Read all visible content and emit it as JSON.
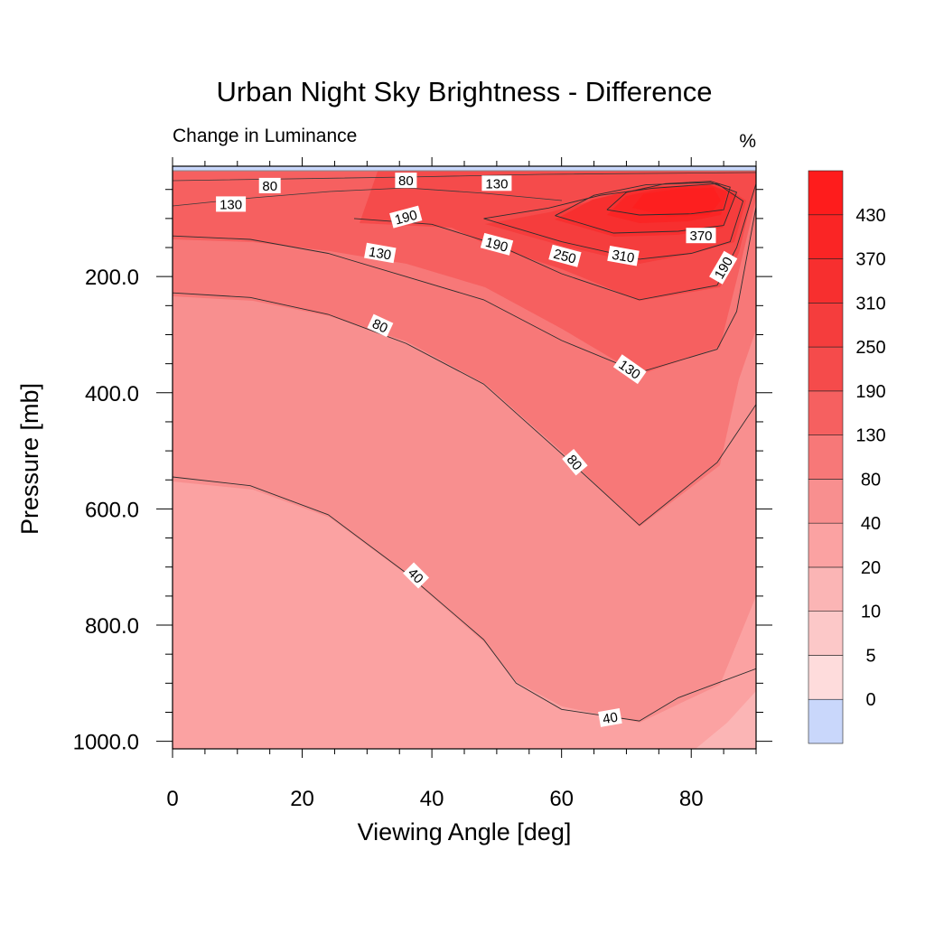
{
  "chart_data": {
    "type": "contour",
    "title": "Urban Night Sky Brightness - Difference",
    "subtitle_left": "Change in Luminance",
    "subtitle_right": "%",
    "xlabel": "Viewing Angle [deg]",
    "ylabel": "Pressure [mb]",
    "xlim": [
      0,
      90
    ],
    "ylim": [
      1013,
      10
    ],
    "x_ticks": [
      "0",
      "20",
      "40",
      "60",
      "80"
    ],
    "x_tick_values": [
      0,
      20,
      40,
      60,
      80
    ],
    "y_ticks": [
      "200.0",
      "400.0",
      "600.0",
      "800.0",
      "1000.0"
    ],
    "y_tick_values": [
      200,
      400,
      600,
      800,
      1000
    ],
    "colorbar": {
      "levels": [
        "0",
        "5",
        "10",
        "20",
        "40",
        "80",
        "130",
        "190",
        "250",
        "310",
        "370",
        "430"
      ],
      "colors": [
        "#c9d7fb",
        "#fedcdc",
        "#fcc8c8",
        "#fbb5b5",
        "#fba2a2",
        "#f88f8f",
        "#f77878",
        "#f66060",
        "#f54b4b",
        "#f53d3d",
        "#f72f2f",
        "#fa2525",
        "#fe1c1c"
      ]
    },
    "contour_lines": [
      {
        "level": "40",
        "points": [
          [
            0,
            545
          ],
          [
            12,
            560
          ],
          [
            24,
            610
          ],
          [
            36,
            710
          ],
          [
            48,
            825
          ],
          [
            53,
            900
          ],
          [
            60,
            945
          ],
          [
            72,
            965
          ],
          [
            78,
            925
          ],
          [
            84,
            900
          ],
          [
            90,
            875
          ]
        ]
      },
      {
        "level": "80",
        "points": [
          [
            0,
            228
          ],
          [
            12,
            236
          ],
          [
            24,
            265
          ],
          [
            36,
            315
          ],
          [
            48,
            385
          ],
          [
            60,
            505
          ],
          [
            72,
            628
          ],
          [
            84,
            520
          ],
          [
            87,
            470
          ],
          [
            90,
            420
          ]
        ]
      },
      {
        "level": "130",
        "points": [
          [
            0,
            130
          ],
          [
            12,
            136
          ],
          [
            24,
            160
          ],
          [
            36,
            200
          ],
          [
            48,
            240
          ],
          [
            60,
            310
          ],
          [
            72,
            365
          ],
          [
            84,
            325
          ],
          [
            87,
            260
          ],
          [
            90,
            80
          ]
        ]
      },
      {
        "level": "190",
        "points": [
          [
            28,
            100
          ],
          [
            40,
            110
          ],
          [
            50,
            145
          ],
          [
            60,
            195
          ],
          [
            72,
            240
          ],
          [
            84,
            215
          ],
          [
            87,
            150
          ],
          [
            90,
            40
          ]
        ]
      },
      {
        "level": "250",
        "points": [
          [
            48,
            100
          ],
          [
            58,
            82
          ],
          [
            66,
            60
          ],
          [
            74,
            48
          ],
          [
            84,
            40
          ],
          [
            88,
            70
          ],
          [
            86,
            140
          ],
          [
            80,
            160
          ],
          [
            72,
            170
          ],
          [
            60,
            140
          ],
          [
            48,
            100
          ]
        ]
      },
      {
        "level": "310",
        "points": [
          [
            59,
            95
          ],
          [
            65,
            60
          ],
          [
            73,
            42
          ],
          [
            83,
            38
          ],
          [
            87,
            55
          ],
          [
            85,
            112
          ],
          [
            78,
            122
          ],
          [
            68,
            125
          ],
          [
            59,
            95
          ]
        ]
      },
      {
        "level": "370",
        "points": [
          [
            67,
            85
          ],
          [
            70,
            55
          ],
          [
            76,
            40
          ],
          [
            83,
            36
          ],
          [
            86,
            46
          ],
          [
            85,
            85
          ],
          [
            80,
            92
          ],
          [
            72,
            94
          ],
          [
            67,
            85
          ]
        ]
      }
    ],
    "contour_labels": [
      {
        "text": "80",
        "x": 15,
        "y": 44,
        "angle": 0
      },
      {
        "text": "80",
        "x": 36,
        "y": 35,
        "angle": 0
      },
      {
        "text": "130",
        "x": 9,
        "y": 76,
        "angle": 0
      },
      {
        "text": "130",
        "x": 50,
        "y": 40,
        "angle": 0
      },
      {
        "text": "190",
        "x": 36,
        "y": 98,
        "angle": -15
      },
      {
        "text": "190",
        "x": 50,
        "y": 145,
        "angle": 15
      },
      {
        "text": "250",
        "x": 60.5,
        "y": 165,
        "angle": 15
      },
      {
        "text": "310",
        "x": 69.5,
        "y": 165,
        "angle": 10
      },
      {
        "text": "370",
        "x": 81.5,
        "y": 130,
        "angle": 0
      },
      {
        "text": "190",
        "x": 85,
        "y": 185,
        "angle": -60
      },
      {
        "text": "130",
        "x": 32,
        "y": 160,
        "angle": 10
      },
      {
        "text": "80",
        "x": 32,
        "y": 285,
        "angle": 25
      },
      {
        "text": "130",
        "x": 70.5,
        "y": 360,
        "angle": 35
      },
      {
        "text": "80",
        "x": 62,
        "y": 520,
        "angle": 50
      },
      {
        "text": "40",
        "x": 37.5,
        "y": 715,
        "angle": 45
      },
      {
        "text": "40",
        "x": 67.5,
        "y": 960,
        "angle": -10
      }
    ]
  }
}
